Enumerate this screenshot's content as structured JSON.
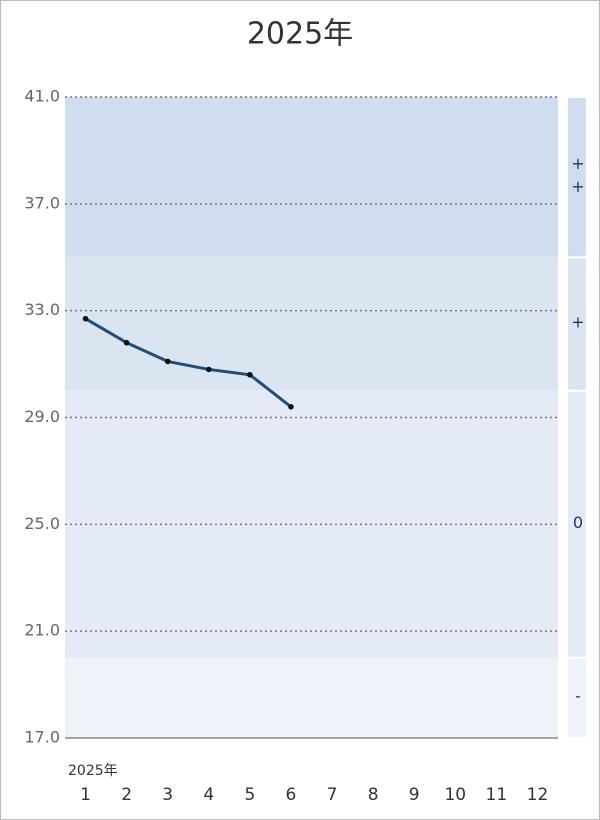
{
  "chart_data": {
    "type": "line",
    "title": "2025年",
    "x_label": "2025年",
    "categories": [
      "1",
      "2",
      "3",
      "4",
      "5",
      "6",
      "7",
      "8",
      "9",
      "10",
      "11",
      "12"
    ],
    "values": [
      32.7,
      31.8,
      31.1,
      30.8,
      30.6,
      29.4,
      null,
      null,
      null,
      null,
      null,
      null
    ],
    "color": "#1f4e7a",
    "ylim": [
      17,
      41
    ],
    "yticks": [
      {
        "value": 17,
        "label": "17.0"
      },
      {
        "value": 21,
        "label": "21.0"
      },
      {
        "value": 25,
        "label": "25.0"
      },
      {
        "value": 29,
        "label": "29.0"
      },
      {
        "value": 33,
        "label": "33.0"
      },
      {
        "value": 37,
        "label": "37.0"
      },
      {
        "value": 41,
        "label": "41.0"
      }
    ],
    "grid": true,
    "bands": [
      {
        "label": "++",
        "from": 35,
        "to": 41,
        "color": "#d0ddee"
      },
      {
        "label": "+",
        "from": 30,
        "to": 35,
        "color": "#dbe5f2"
      },
      {
        "label": "0",
        "from": 20,
        "to": 30,
        "color": "#e5ebf6"
      },
      {
        "label": "-",
        "from": 17,
        "to": 20,
        "color": "#eef2f9"
      }
    ]
  }
}
